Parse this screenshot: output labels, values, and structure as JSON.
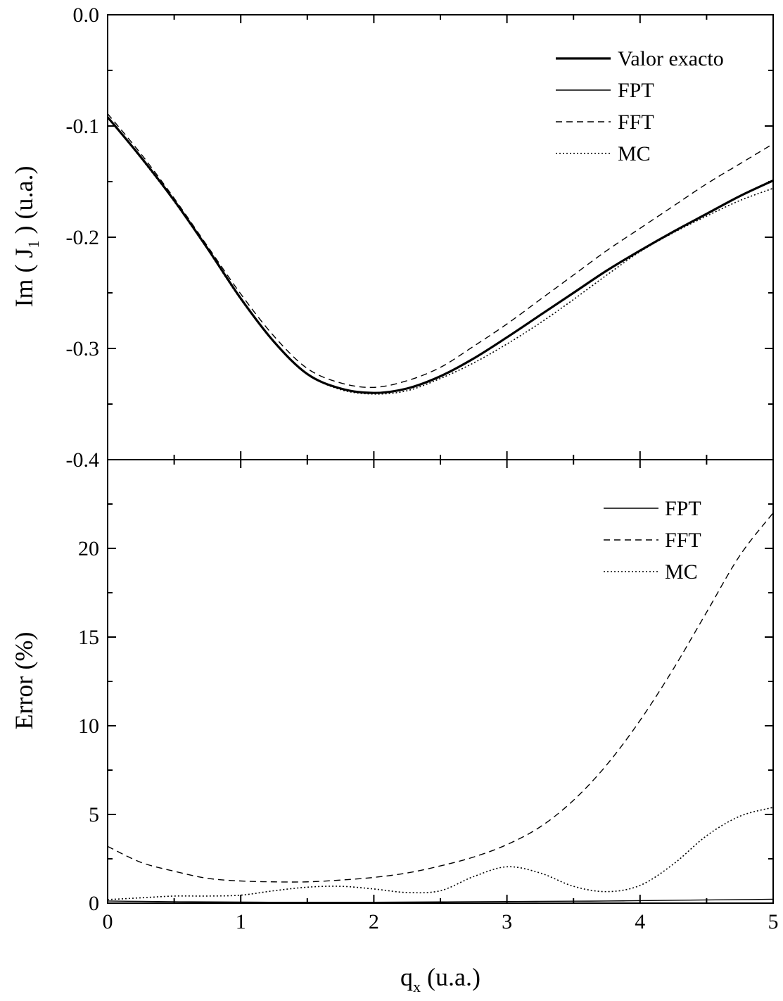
{
  "chart_data": [
    {
      "type": "line",
      "panel": "top",
      "xlabel": "",
      "ylabel": {
        "prefix": "Im ( J",
        "subscript": "1",
        "suffix": " ) (u.a.)"
      },
      "xlim": [
        0,
        5
      ],
      "ylim": [
        -0.4,
        0.0
      ],
      "x_ticks": [
        0,
        1,
        2,
        3,
        4,
        5
      ],
      "y_ticks": [
        "-0.4",
        "-0.3",
        "-0.2",
        "-0.1",
        "0.0"
      ],
      "grid": false,
      "legend_position": "top-right",
      "x": [
        0,
        0.25,
        0.5,
        0.75,
        1,
        1.25,
        1.5,
        1.75,
        2,
        2.25,
        2.5,
        2.75,
        3,
        3.25,
        3.5,
        3.75,
        4,
        4.25,
        4.5,
        4.75,
        5
      ],
      "series": [
        {
          "name": "Valor exacto",
          "style": "thick",
          "values": [
            -0.092,
            -0.128,
            -0.167,
            -0.21,
            -0.255,
            -0.294,
            -0.323,
            -0.336,
            -0.34,
            -0.336,
            -0.325,
            -0.309,
            -0.29,
            -0.27,
            -0.25,
            -0.23,
            -0.212,
            -0.195,
            -0.179,
            -0.163,
            -0.149
          ]
        },
        {
          "name": "FPT",
          "style": "solid",
          "values": [
            -0.092,
            -0.128,
            -0.167,
            -0.21,
            -0.255,
            -0.294,
            -0.323,
            -0.336,
            -0.34,
            -0.336,
            -0.325,
            -0.309,
            -0.29,
            -0.27,
            -0.25,
            -0.23,
            -0.212,
            -0.195,
            -0.179,
            -0.163,
            -0.149
          ]
        },
        {
          "name": "FFT",
          "style": "dashed",
          "values": [
            -0.089,
            -0.125,
            -0.165,
            -0.208,
            -0.251,
            -0.289,
            -0.318,
            -0.331,
            -0.335,
            -0.329,
            -0.317,
            -0.298,
            -0.278,
            -0.256,
            -0.234,
            -0.212,
            -0.192,
            -0.172,
            -0.152,
            -0.134,
            -0.116
          ]
        },
        {
          "name": "MC",
          "style": "dotted",
          "values": [
            -0.092,
            -0.129,
            -0.168,
            -0.211,
            -0.256,
            -0.294,
            -0.323,
            -0.337,
            -0.341,
            -0.338,
            -0.327,
            -0.313,
            -0.296,
            -0.277,
            -0.256,
            -0.234,
            -0.213,
            -0.196,
            -0.181,
            -0.167,
            -0.156
          ]
        }
      ]
    },
    {
      "type": "line",
      "panel": "bottom",
      "xlabel": {
        "prefix": "q",
        "subscript": "x",
        "suffix": " (u.a.)"
      },
      "ylabel": "Error (%)",
      "xlim": [
        0,
        5
      ],
      "ylim": [
        0,
        25
      ],
      "x_ticks": [
        "0",
        "1",
        "2",
        "3",
        "4",
        "5"
      ],
      "y_ticks": [
        "0",
        "5",
        "10",
        "15",
        "20"
      ],
      "grid": false,
      "legend_position": "top-right",
      "x": [
        0,
        0.25,
        0.5,
        0.75,
        1,
        1.25,
        1.5,
        1.75,
        2,
        2.25,
        2.5,
        2.75,
        3,
        3.25,
        3.5,
        3.75,
        4,
        4.25,
        4.5,
        4.75,
        5
      ],
      "series": [
        {
          "name": "FPT",
          "style": "solid",
          "values": [
            0.12,
            0.1,
            0.08,
            0.07,
            0.06,
            0.05,
            0.05,
            0.05,
            0.05,
            0.06,
            0.07,
            0.08,
            0.09,
            0.1,
            0.11,
            0.12,
            0.14,
            0.16,
            0.18,
            0.2,
            0.22
          ]
        },
        {
          "name": "FFT",
          "style": "dashed",
          "values": [
            3.2,
            2.3,
            1.8,
            1.4,
            1.25,
            1.2,
            1.2,
            1.3,
            1.45,
            1.7,
            2.1,
            2.6,
            3.3,
            4.3,
            5.8,
            7.8,
            10.3,
            13.2,
            16.4,
            19.6,
            22.0
          ]
        },
        {
          "name": "MC",
          "style": "dotted",
          "values": [
            0.2,
            0.3,
            0.4,
            0.4,
            0.45,
            0.7,
            0.9,
            0.95,
            0.8,
            0.6,
            0.7,
            1.5,
            2.05,
            1.7,
            0.95,
            0.65,
            1.0,
            2.2,
            3.8,
            4.9,
            5.4
          ]
        }
      ]
    }
  ]
}
